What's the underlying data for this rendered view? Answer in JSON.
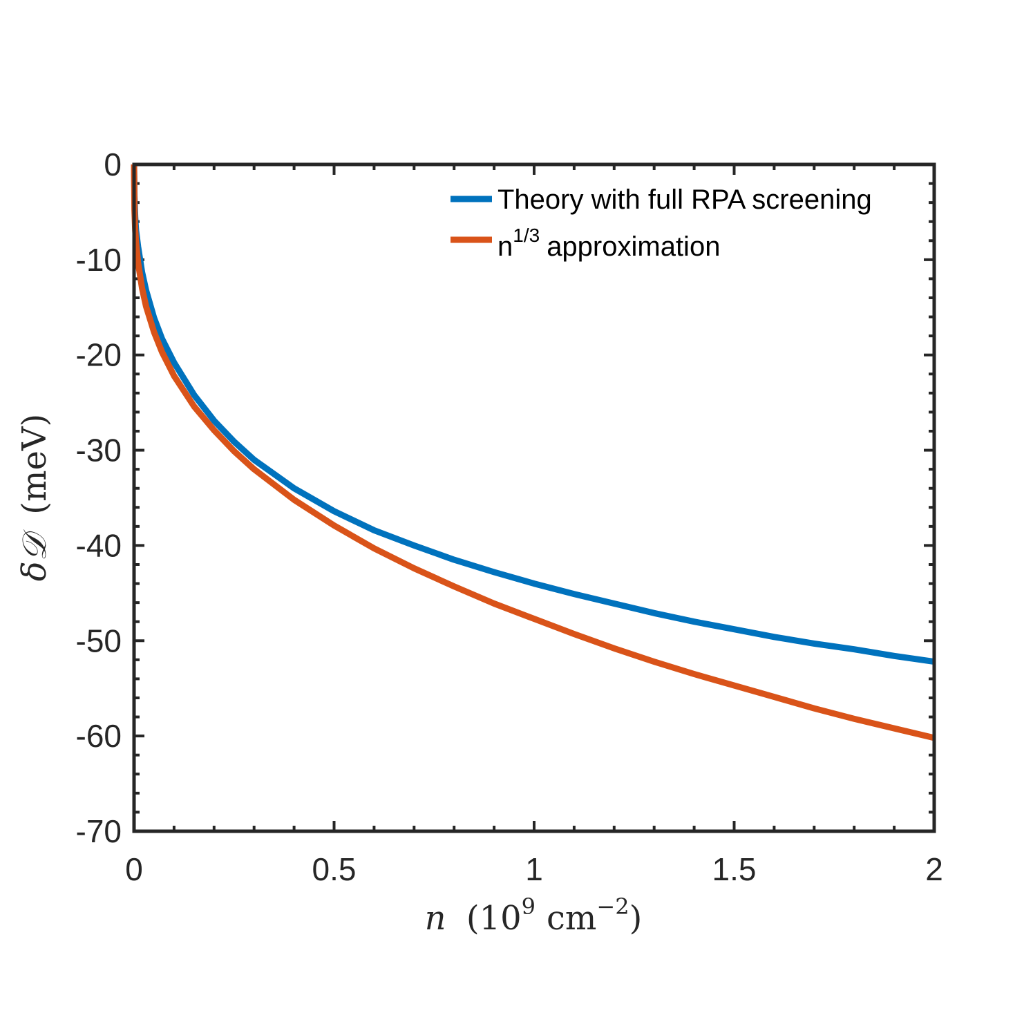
{
  "chart_data": {
    "type": "line",
    "title": "",
    "xlabel": {
      "var": "n",
      "open": "(",
      "base": "10",
      "exp": "9",
      "unit": "cm",
      "unit_exp": "−2",
      "close": ")"
    },
    "ylabel": {
      "var": "δ𝒟",
      "unit": "(meV)"
    },
    "xlim": [
      0,
      2
    ],
    "ylim": [
      -70,
      0
    ],
    "xticks": [
      0,
      0.5,
      1,
      1.5,
      2
    ],
    "xtick_labels": [
      "0",
      "0.5",
      "1",
      "1.5",
      "2"
    ],
    "yticks": [
      0,
      -10,
      -20,
      -30,
      -40,
      -50,
      -60,
      -70
    ],
    "ytick_labels": [
      "0",
      "-10",
      "-20",
      "-30",
      "-40",
      "-50",
      "-60",
      "-70"
    ],
    "x_minor_step": 0.1,
    "y_minor_step": 2,
    "grid": false,
    "legend_position": "top-right",
    "series": [
      {
        "name": "Theory with full RPA screening",
        "color": "#0072BD",
        "x": [
          0,
          0.001,
          0.003,
          0.005,
          0.01,
          0.02,
          0.03,
          0.05,
          0.07,
          0.1,
          0.15,
          0.2,
          0.25,
          0.3,
          0.4,
          0.5,
          0.6,
          0.7,
          0.8,
          0.9,
          1.0,
          1.1,
          1.2,
          1.3,
          1.4,
          1.5,
          1.6,
          1.7,
          1.8,
          1.9,
          2.0
        ],
        "y": [
          0,
          -3.3,
          -5.6,
          -6.9,
          -8.6,
          -11.3,
          -13.2,
          -16.1,
          -18.3,
          -20.8,
          -24.2,
          -26.9,
          -29.1,
          -31.0,
          -34.0,
          -36.4,
          -38.4,
          -40.0,
          -41.5,
          -42.8,
          -44.0,
          -45.1,
          -46.1,
          -47.1,
          -48.0,
          -48.8,
          -49.6,
          -50.3,
          -50.9,
          -51.6,
          -52.2
        ]
      },
      {
        "name_base": "n",
        "name_sup": "1/3",
        "name_rest": "approximation",
        "color": "#D95319",
        "x": [
          0,
          0.001,
          0.003,
          0.005,
          0.01,
          0.02,
          0.03,
          0.05,
          0.07,
          0.1,
          0.15,
          0.2,
          0.25,
          0.3,
          0.4,
          0.5,
          0.6,
          0.7,
          0.8,
          0.9,
          1.0,
          1.1,
          1.2,
          1.3,
          1.4,
          1.5,
          1.6,
          1.7,
          1.8,
          1.9,
          2.0
        ],
        "y": [
          0,
          -4.8,
          -6.9,
          -8.2,
          -10.3,
          -13.0,
          -14.9,
          -17.6,
          -19.7,
          -22.2,
          -25.4,
          -27.9,
          -30.1,
          -32.0,
          -35.2,
          -37.9,
          -40.3,
          -42.4,
          -44.3,
          -46.1,
          -47.7,
          -49.3,
          -50.8,
          -52.2,
          -53.5,
          -54.7,
          -55.9,
          -57.1,
          -58.2,
          -59.2,
          -60.2
        ]
      }
    ]
  }
}
